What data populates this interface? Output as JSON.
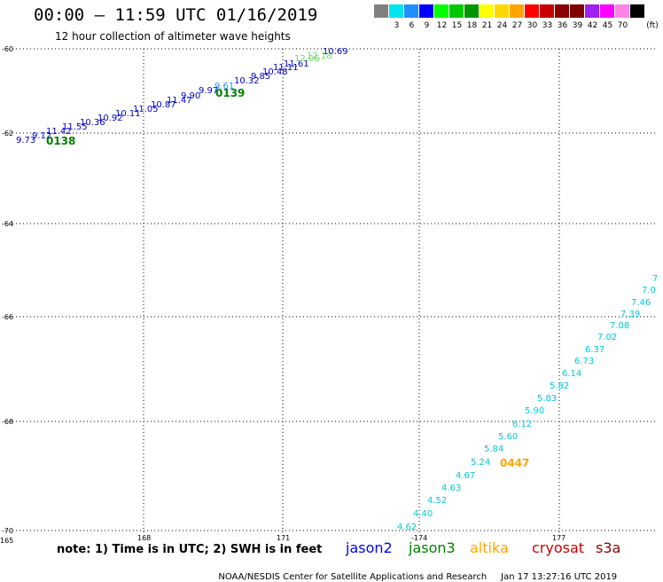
{
  "title": "00:00 – 11:59 UTC 01/16/2019",
  "subtitle": "12 hour collection of altimeter wave heights",
  "legend": {
    "unit": "(ft)",
    "swatches": [
      {
        "color": "#808080",
        "label": ""
      },
      {
        "color": "#00e5ee",
        "label": "3"
      },
      {
        "color": "#1e90ff",
        "label": "6"
      },
      {
        "color": "#0000ff",
        "label": "9"
      },
      {
        "color": "#00ff00",
        "label": "12"
      },
      {
        "color": "#00c800",
        "label": "15"
      },
      {
        "color": "#009600",
        "label": "18"
      },
      {
        "color": "#ffff00",
        "label": "21"
      },
      {
        "color": "#ffd700",
        "label": "24"
      },
      {
        "color": "#ffa500",
        "label": "27"
      },
      {
        "color": "#ff0000",
        "label": "30"
      },
      {
        "color": "#c80000",
        "label": "33"
      },
      {
        "color": "#8b0000",
        "label": "36"
      },
      {
        "color": "#800000",
        "label": "39"
      },
      {
        "color": "#a020f0",
        "label": "42"
      },
      {
        "color": "#ff00ff",
        "label": "45"
      },
      {
        "color": "#ff82e6",
        "label": "70"
      },
      {
        "color": "#000000",
        "label": ""
      }
    ]
  },
  "map": {
    "latitudes": [
      "-60",
      "-62",
      "-64",
      "-66",
      "-68",
      "-70"
    ],
    "longitudes": [
      "165",
      "168",
      "171",
      "-174",
      "177"
    ],
    "pass_labels": [
      {
        "text": "0138",
        "color": "#008000"
      },
      {
        "text": "0139",
        "color": "#008000"
      },
      {
        "text": "0447",
        "color": "#ffa500"
      }
    ],
    "track1": [
      {
        "v": "9.73",
        "c": "#0000cc"
      },
      {
        "v": "9.12",
        "c": "#0000cc"
      },
      {
        "v": "11.42",
        "c": "#0000cc"
      },
      {
        "v": "11.55",
        "c": "#0000cc"
      },
      {
        "v": "10.36",
        "c": "#0000cc"
      },
      {
        "v": "10.92",
        "c": "#0000cc"
      },
      {
        "v": "10.11",
        "c": "#0000cc"
      },
      {
        "v": "11.05",
        "c": "#0000cc"
      },
      {
        "v": "10.87",
        "c": "#0000cc"
      },
      {
        "v": "11.47",
        "c": "#0000cc"
      },
      {
        "v": "9.90",
        "c": "#0000cc"
      },
      {
        "v": "9.97",
        "c": "#0000cc"
      },
      {
        "v": "9.61",
        "c": "#1e90ff"
      },
      {
        "v": "10.32",
        "c": "#0000cc"
      },
      {
        "v": "9.85",
        "c": "#0000cc"
      },
      {
        "v": "10.48",
        "c": "#0000cc"
      },
      {
        "v": "11.11",
        "c": "#0000cc"
      },
      {
        "v": "11.61",
        "c": "#0000cc"
      },
      {
        "v": "12.06",
        "c": "#66dd66"
      },
      {
        "v": "12.18",
        "c": "#66dd66"
      },
      {
        "v": "10.69",
        "c": "#0000cc"
      }
    ],
    "track2": [
      {
        "v": "4.62",
        "c": "#00c8d8"
      },
      {
        "v": "4.40",
        "c": "#00c8d8"
      },
      {
        "v": "4.52",
        "c": "#00c8d8"
      },
      {
        "v": "4.63",
        "c": "#00c8d8"
      },
      {
        "v": "4.67",
        "c": "#00c8d8"
      },
      {
        "v": "5.24",
        "c": "#00c8d8"
      },
      {
        "v": "5.84",
        "c": "#00c8d8"
      },
      {
        "v": "5.60",
        "c": "#00c8d8"
      },
      {
        "v": "6.12",
        "c": "#00c8d8"
      },
      {
        "v": "5.90",
        "c": "#00c8d8"
      },
      {
        "v": "5.83",
        "c": "#00c8d8"
      },
      {
        "v": "5.82",
        "c": "#00c8d8"
      },
      {
        "v": "6.14",
        "c": "#00c8d8"
      },
      {
        "v": "6.73",
        "c": "#00c8d8"
      },
      {
        "v": "6.37",
        "c": "#00c8d8"
      },
      {
        "v": "7.02",
        "c": "#00c8d8"
      },
      {
        "v": "7.08",
        "c": "#00c8d8"
      },
      {
        "v": "7.39",
        "c": "#00c8d8"
      },
      {
        "v": "7.46",
        "c": "#00c8d8"
      },
      {
        "v": "7.0",
        "c": "#00c8d8"
      },
      {
        "v": "7",
        "c": "#00c8d8"
      }
    ]
  },
  "note": "note: 1) Time is in UTC; 2) SWH is in feet",
  "satellites": [
    {
      "name": "jason2",
      "color": "#0000ff"
    },
    {
      "name": "jason3",
      "color": "#008000"
    },
    {
      "name": "altika",
      "color": "#ffa500"
    },
    {
      "name": "cryosat",
      "color": "#cc0000"
    },
    {
      "name": "s3a",
      "color": "#8b0000"
    }
  ],
  "footer": {
    "agency": "NOAA/NESDIS Center for Satellite Applications and Research",
    "timestamp": "Jan 17 13:27:16 UTC 2019"
  }
}
